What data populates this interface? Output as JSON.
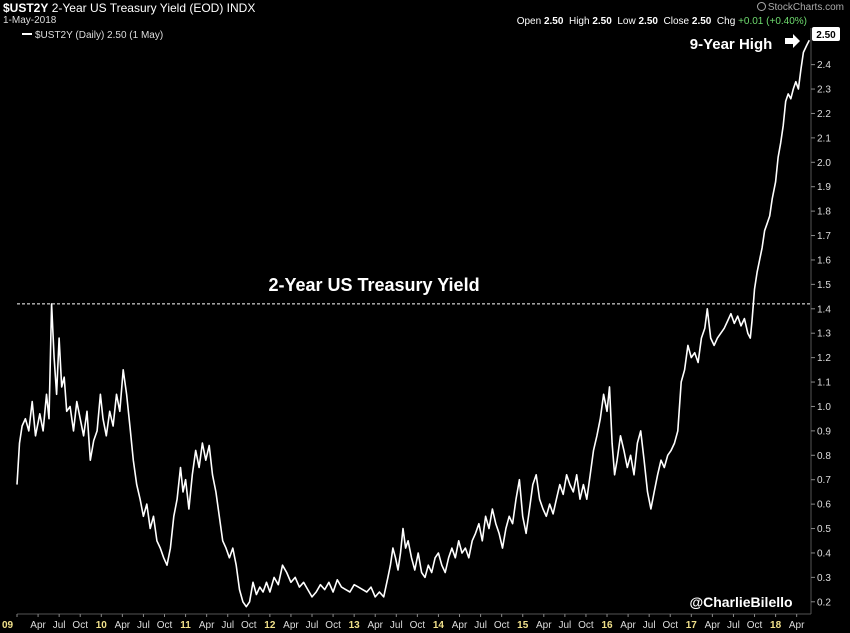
{
  "header": {
    "symbol": "$UST2Y",
    "description": "2-Year US Treasury Yield (EOD)",
    "exchange": "INDX",
    "date": "1-May-2018",
    "open_label": "Open",
    "open": "2.50",
    "high_label": "High",
    "high": "2.50",
    "low_label": "Low",
    "low": "2.50",
    "close_label": "Close",
    "close": "2.50",
    "chg_label": "Chg",
    "chg": "+0.01 (+0.40%)",
    "brand": "StockCharts.com",
    "chg_color": "#6fdc6f"
  },
  "legend": {
    "text": "$UST2Y (Daily) 2.50 (1 May)"
  },
  "chart_data": {
    "type": "line",
    "title": "2-Year US Treasury Yield",
    "last_value_label": "2.50",
    "ylim": [
      0.15,
      2.55
    ],
    "y_ticks": [
      0.2,
      0.3,
      0.4,
      0.5,
      0.6,
      0.7,
      0.8,
      0.9,
      1.0,
      1.1,
      1.2,
      1.3,
      1.4,
      1.5,
      1.6,
      1.7,
      1.8,
      1.9,
      2.0,
      2.1,
      2.2,
      2.3,
      2.4
    ],
    "x_range": [
      2009.0,
      2018.42
    ],
    "x_ticks": [
      {
        "t": 2009.0,
        "label": "09",
        "year": true
      },
      {
        "t": 2009.25,
        "label": "Apr"
      },
      {
        "t": 2009.5,
        "label": "Jul"
      },
      {
        "t": 2009.75,
        "label": "Oct"
      },
      {
        "t": 2010.0,
        "label": "10",
        "year": true
      },
      {
        "t": 2010.25,
        "label": "Apr"
      },
      {
        "t": 2010.5,
        "label": "Jul"
      },
      {
        "t": 2010.75,
        "label": "Oct"
      },
      {
        "t": 2011.0,
        "label": "11",
        "year": true
      },
      {
        "t": 2011.25,
        "label": "Apr"
      },
      {
        "t": 2011.5,
        "label": "Jul"
      },
      {
        "t": 2011.75,
        "label": "Oct"
      },
      {
        "t": 2012.0,
        "label": "12",
        "year": true
      },
      {
        "t": 2012.25,
        "label": "Apr"
      },
      {
        "t": 2012.5,
        "label": "Jul"
      },
      {
        "t": 2012.75,
        "label": "Oct"
      },
      {
        "t": 2013.0,
        "label": "13",
        "year": true
      },
      {
        "t": 2013.25,
        "label": "Apr"
      },
      {
        "t": 2013.5,
        "label": "Jul"
      },
      {
        "t": 2013.75,
        "label": "Oct"
      },
      {
        "t": 2014.0,
        "label": "14",
        "year": true
      },
      {
        "t": 2014.25,
        "label": "Apr"
      },
      {
        "t": 2014.5,
        "label": "Jul"
      },
      {
        "t": 2014.75,
        "label": "Oct"
      },
      {
        "t": 2015.0,
        "label": "15",
        "year": true
      },
      {
        "t": 2015.25,
        "label": "Apr"
      },
      {
        "t": 2015.5,
        "label": "Jul"
      },
      {
        "t": 2015.75,
        "label": "Oct"
      },
      {
        "t": 2016.0,
        "label": "16",
        "year": true
      },
      {
        "t": 2016.25,
        "label": "Apr"
      },
      {
        "t": 2016.5,
        "label": "Jul"
      },
      {
        "t": 2016.75,
        "label": "Oct"
      },
      {
        "t": 2017.0,
        "label": "17",
        "year": true
      },
      {
        "t": 2017.25,
        "label": "Apr"
      },
      {
        "t": 2017.5,
        "label": "Jul"
      },
      {
        "t": 2017.75,
        "label": "Oct"
      },
      {
        "t": 2018.0,
        "label": "18",
        "year": true
      },
      {
        "t": 2018.25,
        "label": "Apr"
      }
    ],
    "reference_line": {
      "value": 1.42
    },
    "annotations": [
      {
        "text": "9-Year High"
      },
      {
        "text": "@CharlieBilello"
      }
    ],
    "series": [
      {
        "points": [
          [
            2009.0,
            0.68
          ],
          [
            2009.03,
            0.85
          ],
          [
            2009.06,
            0.92
          ],
          [
            2009.1,
            0.95
          ],
          [
            2009.14,
            0.9
          ],
          [
            2009.18,
            1.02
          ],
          [
            2009.22,
            0.88
          ],
          [
            2009.27,
            0.97
          ],
          [
            2009.31,
            0.9
          ],
          [
            2009.35,
            1.05
          ],
          [
            2009.38,
            0.95
          ],
          [
            2009.41,
            1.42
          ],
          [
            2009.44,
            1.2
          ],
          [
            2009.47,
            1.05
          ],
          [
            2009.5,
            1.28
          ],
          [
            2009.53,
            1.08
          ],
          [
            2009.56,
            1.12
          ],
          [
            2009.59,
            0.98
          ],
          [
            2009.63,
            1.0
          ],
          [
            2009.67,
            0.9
          ],
          [
            2009.71,
            1.02
          ],
          [
            2009.75,
            0.95
          ],
          [
            2009.79,
            0.88
          ],
          [
            2009.83,
            0.98
          ],
          [
            2009.87,
            0.78
          ],
          [
            2009.91,
            0.86
          ],
          [
            2009.95,
            0.9
          ],
          [
            2009.99,
            1.05
          ],
          [
            2010.02,
            0.95
          ],
          [
            2010.06,
            0.88
          ],
          [
            2010.1,
            0.98
          ],
          [
            2010.14,
            0.92
          ],
          [
            2010.18,
            1.05
          ],
          [
            2010.22,
            0.98
          ],
          [
            2010.26,
            1.15
          ],
          [
            2010.3,
            1.05
          ],
          [
            2010.34,
            0.92
          ],
          [
            2010.38,
            0.78
          ],
          [
            2010.42,
            0.68
          ],
          [
            2010.46,
            0.62
          ],
          [
            2010.5,
            0.55
          ],
          [
            2010.54,
            0.6
          ],
          [
            2010.58,
            0.5
          ],
          [
            2010.62,
            0.55
          ],
          [
            2010.66,
            0.45
          ],
          [
            2010.7,
            0.42
          ],
          [
            2010.74,
            0.38
          ],
          [
            2010.78,
            0.35
          ],
          [
            2010.82,
            0.42
          ],
          [
            2010.86,
            0.55
          ],
          [
            2010.9,
            0.62
          ],
          [
            2010.94,
            0.75
          ],
          [
            2010.97,
            0.65
          ],
          [
            2011.0,
            0.7
          ],
          [
            2011.04,
            0.58
          ],
          [
            2011.08,
            0.72
          ],
          [
            2011.12,
            0.82
          ],
          [
            2011.16,
            0.75
          ],
          [
            2011.2,
            0.85
          ],
          [
            2011.24,
            0.78
          ],
          [
            2011.28,
            0.84
          ],
          [
            2011.32,
            0.72
          ],
          [
            2011.36,
            0.65
          ],
          [
            2011.4,
            0.55
          ],
          [
            2011.44,
            0.45
          ],
          [
            2011.48,
            0.42
          ],
          [
            2011.52,
            0.38
          ],
          [
            2011.56,
            0.42
          ],
          [
            2011.6,
            0.35
          ],
          [
            2011.64,
            0.25
          ],
          [
            2011.68,
            0.2
          ],
          [
            2011.72,
            0.18
          ],
          [
            2011.76,
            0.2
          ],
          [
            2011.8,
            0.28
          ],
          [
            2011.84,
            0.23
          ],
          [
            2011.88,
            0.26
          ],
          [
            2011.92,
            0.24
          ],
          [
            2011.96,
            0.28
          ],
          [
            2012.0,
            0.24
          ],
          [
            2012.05,
            0.3
          ],
          [
            2012.1,
            0.27
          ],
          [
            2012.15,
            0.35
          ],
          [
            2012.2,
            0.32
          ],
          [
            2012.25,
            0.28
          ],
          [
            2012.3,
            0.3
          ],
          [
            2012.35,
            0.26
          ],
          [
            2012.4,
            0.28
          ],
          [
            2012.45,
            0.25
          ],
          [
            2012.5,
            0.22
          ],
          [
            2012.55,
            0.24
          ],
          [
            2012.6,
            0.27
          ],
          [
            2012.65,
            0.25
          ],
          [
            2012.7,
            0.28
          ],
          [
            2012.75,
            0.24
          ],
          [
            2012.8,
            0.29
          ],
          [
            2012.85,
            0.26
          ],
          [
            2012.9,
            0.25
          ],
          [
            2012.95,
            0.24
          ],
          [
            2013.0,
            0.27
          ],
          [
            2013.05,
            0.26
          ],
          [
            2013.1,
            0.25
          ],
          [
            2013.15,
            0.24
          ],
          [
            2013.2,
            0.26
          ],
          [
            2013.25,
            0.22
          ],
          [
            2013.3,
            0.24
          ],
          [
            2013.35,
            0.22
          ],
          [
            2013.4,
            0.3
          ],
          [
            2013.43,
            0.35
          ],
          [
            2013.46,
            0.42
          ],
          [
            2013.49,
            0.38
          ],
          [
            2013.52,
            0.33
          ],
          [
            2013.55,
            0.4
          ],
          [
            2013.58,
            0.5
          ],
          [
            2013.61,
            0.42
          ],
          [
            2013.64,
            0.45
          ],
          [
            2013.68,
            0.38
          ],
          [
            2013.72,
            0.33
          ],
          [
            2013.76,
            0.4
          ],
          [
            2013.8,
            0.32
          ],
          [
            2013.84,
            0.3
          ],
          [
            2013.88,
            0.35
          ],
          [
            2013.92,
            0.32
          ],
          [
            2013.96,
            0.38
          ],
          [
            2014.0,
            0.4
          ],
          [
            2014.04,
            0.35
          ],
          [
            2014.08,
            0.32
          ],
          [
            2014.12,
            0.38
          ],
          [
            2014.16,
            0.42
          ],
          [
            2014.2,
            0.38
          ],
          [
            2014.24,
            0.45
          ],
          [
            2014.28,
            0.4
          ],
          [
            2014.32,
            0.42
          ],
          [
            2014.36,
            0.38
          ],
          [
            2014.4,
            0.45
          ],
          [
            2014.44,
            0.48
          ],
          [
            2014.48,
            0.52
          ],
          [
            2014.52,
            0.45
          ],
          [
            2014.56,
            0.55
          ],
          [
            2014.6,
            0.5
          ],
          [
            2014.64,
            0.58
          ],
          [
            2014.68,
            0.52
          ],
          [
            2014.72,
            0.48
          ],
          [
            2014.76,
            0.42
          ],
          [
            2014.8,
            0.5
          ],
          [
            2014.84,
            0.55
          ],
          [
            2014.88,
            0.52
          ],
          [
            2014.92,
            0.62
          ],
          [
            2014.96,
            0.7
          ],
          [
            2015.0,
            0.55
          ],
          [
            2015.04,
            0.48
          ],
          [
            2015.08,
            0.58
          ],
          [
            2015.12,
            0.68
          ],
          [
            2015.16,
            0.72
          ],
          [
            2015.2,
            0.62
          ],
          [
            2015.24,
            0.58
          ],
          [
            2015.28,
            0.55
          ],
          [
            2015.32,
            0.6
          ],
          [
            2015.36,
            0.56
          ],
          [
            2015.4,
            0.62
          ],
          [
            2015.44,
            0.68
          ],
          [
            2015.48,
            0.64
          ],
          [
            2015.52,
            0.72
          ],
          [
            2015.56,
            0.68
          ],
          [
            2015.6,
            0.65
          ],
          [
            2015.64,
            0.72
          ],
          [
            2015.68,
            0.62
          ],
          [
            2015.72,
            0.68
          ],
          [
            2015.76,
            0.62
          ],
          [
            2015.8,
            0.72
          ],
          [
            2015.84,
            0.82
          ],
          [
            2015.88,
            0.88
          ],
          [
            2015.92,
            0.95
          ],
          [
            2015.96,
            1.05
          ],
          [
            2016.0,
            0.98
          ],
          [
            2016.03,
            1.08
          ],
          [
            2016.06,
            0.85
          ],
          [
            2016.09,
            0.72
          ],
          [
            2016.12,
            0.78
          ],
          [
            2016.16,
            0.88
          ],
          [
            2016.2,
            0.82
          ],
          [
            2016.24,
            0.75
          ],
          [
            2016.28,
            0.8
          ],
          [
            2016.32,
            0.72
          ],
          [
            2016.36,
            0.85
          ],
          [
            2016.4,
            0.9
          ],
          [
            2016.44,
            0.78
          ],
          [
            2016.48,
            0.65
          ],
          [
            2016.52,
            0.58
          ],
          [
            2016.56,
            0.65
          ],
          [
            2016.6,
            0.72
          ],
          [
            2016.64,
            0.78
          ],
          [
            2016.68,
            0.75
          ],
          [
            2016.72,
            0.8
          ],
          [
            2016.76,
            0.82
          ],
          [
            2016.8,
            0.85
          ],
          [
            2016.84,
            0.9
          ],
          [
            2016.88,
            1.1
          ],
          [
            2016.92,
            1.15
          ],
          [
            2016.96,
            1.25
          ],
          [
            2017.0,
            1.2
          ],
          [
            2017.04,
            1.22
          ],
          [
            2017.08,
            1.18
          ],
          [
            2017.12,
            1.28
          ],
          [
            2017.16,
            1.32
          ],
          [
            2017.19,
            1.4
          ],
          [
            2017.23,
            1.28
          ],
          [
            2017.27,
            1.25
          ],
          [
            2017.31,
            1.28
          ],
          [
            2017.35,
            1.3
          ],
          [
            2017.39,
            1.32
          ],
          [
            2017.43,
            1.35
          ],
          [
            2017.47,
            1.38
          ],
          [
            2017.51,
            1.34
          ],
          [
            2017.55,
            1.37
          ],
          [
            2017.59,
            1.33
          ],
          [
            2017.63,
            1.36
          ],
          [
            2017.67,
            1.3
          ],
          [
            2017.7,
            1.28
          ],
          [
            2017.72,
            1.35
          ],
          [
            2017.75,
            1.48
          ],
          [
            2017.78,
            1.55
          ],
          [
            2017.81,
            1.6
          ],
          [
            2017.84,
            1.65
          ],
          [
            2017.87,
            1.72
          ],
          [
            2017.9,
            1.75
          ],
          [
            2017.93,
            1.78
          ],
          [
            2017.96,
            1.85
          ],
          [
            2018.0,
            1.92
          ],
          [
            2018.03,
            2.02
          ],
          [
            2018.06,
            2.08
          ],
          [
            2018.09,
            2.15
          ],
          [
            2018.12,
            2.25
          ],
          [
            2018.15,
            2.28
          ],
          [
            2018.18,
            2.26
          ],
          [
            2018.21,
            2.3
          ],
          [
            2018.24,
            2.33
          ],
          [
            2018.27,
            2.3
          ],
          [
            2018.3,
            2.38
          ],
          [
            2018.33,
            2.45
          ],
          [
            2018.37,
            2.48
          ],
          [
            2018.4,
            2.5
          ]
        ]
      }
    ]
  }
}
